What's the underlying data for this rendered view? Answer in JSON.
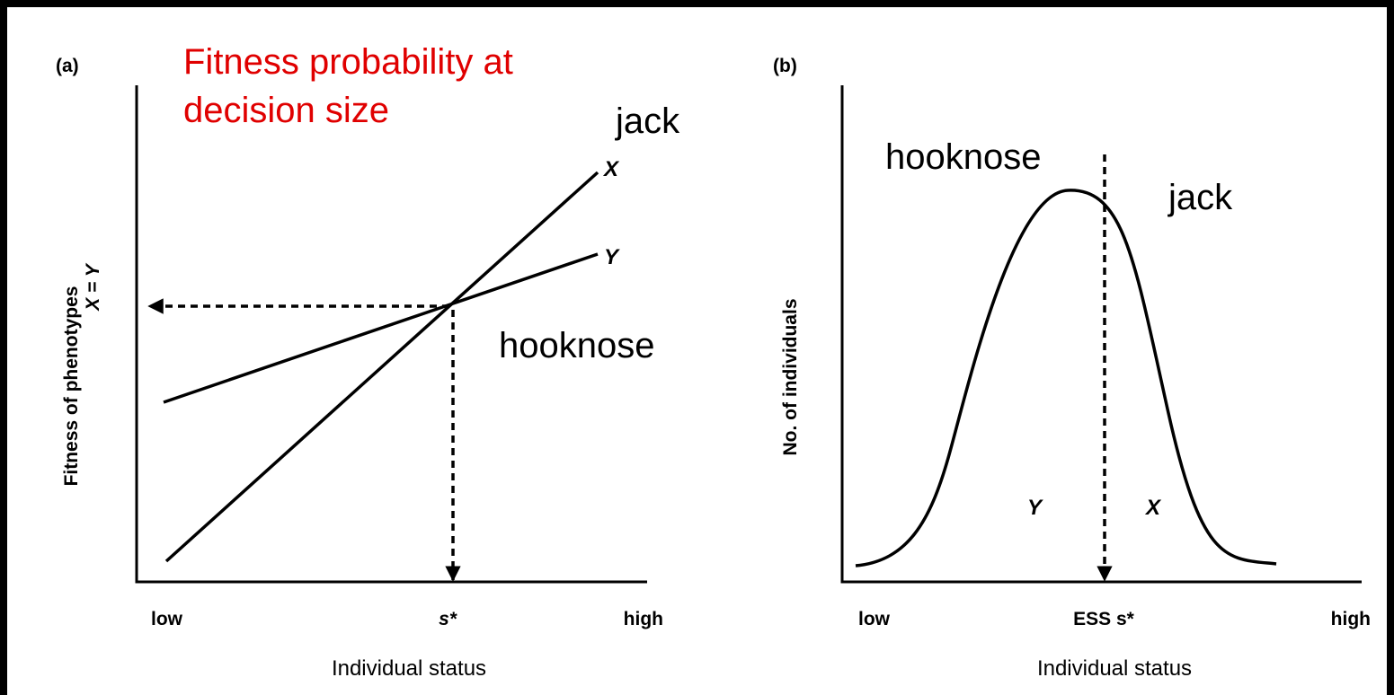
{
  "panel_a": {
    "label": "(a)",
    "annotation": [
      "Fitness probability at",
      "decision size"
    ],
    "jack": "jack",
    "hooknose": "hooknose",
    "line_x": "X",
    "line_y": "Y",
    "y_axis_label": "Fitness of phenotypes",
    "y_axis_sublabel": "X = Y",
    "x_ticks": [
      "low",
      "s*",
      "high"
    ],
    "x_axis_label": "Individual status"
  },
  "panel_b": {
    "label": "(b)",
    "hooknose": "hooknose",
    "jack": "jack",
    "region_y": "Y",
    "region_x": "X",
    "y_axis_label": "No. of individuals",
    "x_ticks": [
      "low",
      "ESS s*",
      "high"
    ],
    "x_axis_label": "Individual status"
  }
}
